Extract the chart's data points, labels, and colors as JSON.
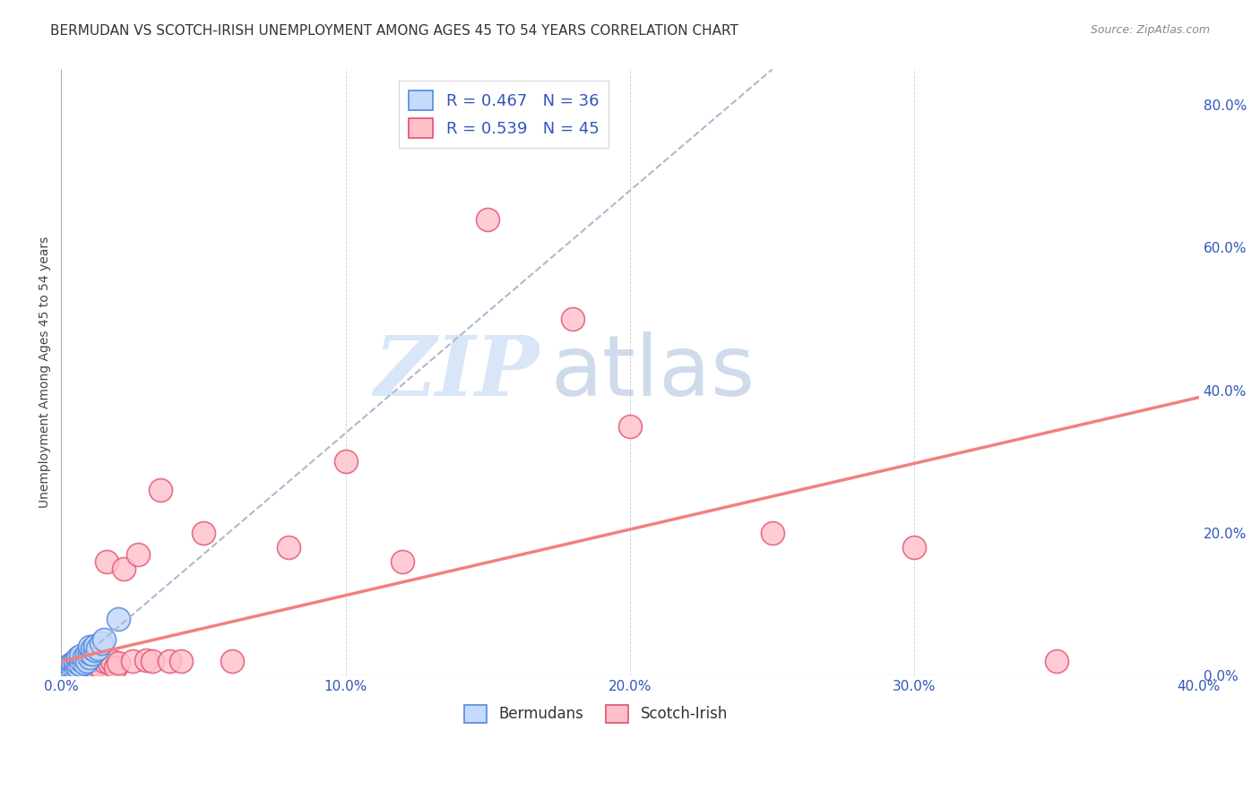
{
  "title": "BERMUDAN VS SCOTCH-IRISH UNEMPLOYMENT AMONG AGES 45 TO 54 YEARS CORRELATION CHART",
  "source": "Source: ZipAtlas.com",
  "ylabel": "Unemployment Among Ages 45 to 54 years",
  "xlim": [
    0.0,
    0.4
  ],
  "ylim": [
    0.0,
    0.85
  ],
  "xticks": [
    0.0,
    0.1,
    0.2,
    0.3,
    0.4
  ],
  "yticks_right": [
    0.0,
    0.2,
    0.4,
    0.6,
    0.8
  ],
  "bermudan_R": 0.467,
  "bermudan_N": 36,
  "scotchirish_R": 0.539,
  "scotchirish_N": 45,
  "bermudan_color": "#7aabf0",
  "bermudan_face": "#c5dafc",
  "bermudan_edge": "#5588dd",
  "scotchirish_color": "#f08080",
  "scotchirish_face": "#ffc0cb",
  "scotchirish_edge": "#e05070",
  "bermudan_scatter_x": [
    0.0,
    0.001,
    0.001,
    0.002,
    0.002,
    0.002,
    0.003,
    0.003,
    0.003,
    0.004,
    0.004,
    0.004,
    0.005,
    0.005,
    0.005,
    0.006,
    0.006,
    0.006,
    0.007,
    0.007,
    0.007,
    0.008,
    0.008,
    0.009,
    0.009,
    0.01,
    0.01,
    0.01,
    0.011,
    0.011,
    0.012,
    0.012,
    0.013,
    0.014,
    0.015,
    0.02
  ],
  "bermudan_scatter_y": [
    0.0,
    0.005,
    0.01,
    0.0,
    0.008,
    0.012,
    0.005,
    0.01,
    0.015,
    0.008,
    0.012,
    0.018,
    0.01,
    0.015,
    0.02,
    0.012,
    0.018,
    0.025,
    0.015,
    0.022,
    0.028,
    0.018,
    0.025,
    0.02,
    0.03,
    0.025,
    0.032,
    0.04,
    0.03,
    0.038,
    0.035,
    0.042,
    0.038,
    0.045,
    0.05,
    0.08
  ],
  "scotchirish_scatter_x": [
    0.0,
    0.001,
    0.002,
    0.003,
    0.004,
    0.005,
    0.005,
    0.006,
    0.007,
    0.007,
    0.008,
    0.008,
    0.009,
    0.01,
    0.01,
    0.011,
    0.012,
    0.012,
    0.013,
    0.014,
    0.015,
    0.016,
    0.017,
    0.018,
    0.019,
    0.02,
    0.022,
    0.025,
    0.027,
    0.03,
    0.032,
    0.035,
    0.038,
    0.042,
    0.05,
    0.06,
    0.08,
    0.1,
    0.12,
    0.15,
    0.18,
    0.2,
    0.25,
    0.3,
    0.35
  ],
  "scotchirish_scatter_y": [
    0.002,
    0.005,
    0.008,
    0.003,
    0.01,
    0.005,
    0.012,
    0.008,
    0.006,
    0.015,
    0.01,
    0.018,
    0.012,
    0.015,
    0.02,
    0.012,
    0.018,
    0.025,
    0.015,
    0.01,
    0.02,
    0.16,
    0.018,
    0.02,
    0.012,
    0.018,
    0.15,
    0.02,
    0.17,
    0.022,
    0.02,
    0.26,
    0.02,
    0.02,
    0.2,
    0.02,
    0.18,
    0.3,
    0.16,
    0.64,
    0.5,
    0.35,
    0.2,
    0.18,
    0.02
  ],
  "bermudan_trendline_x": [
    0.0,
    0.25
  ],
  "bermudan_trendline_y": [
    0.0,
    0.85
  ],
  "scotchirish_trendline_x": [
    0.0,
    0.4
  ],
  "scotchirish_trendline_y": [
    0.02,
    0.39
  ],
  "watermark_zip": "ZIP",
  "watermark_atlas": "atlas",
  "background_color": "#ffffff",
  "grid_color": "#cccccc",
  "title_fontsize": 11,
  "axis_label_fontsize": 10,
  "tick_fontsize": 11,
  "right_tick_color": "#3355bb",
  "bottom_tick_color": "#3355bb"
}
